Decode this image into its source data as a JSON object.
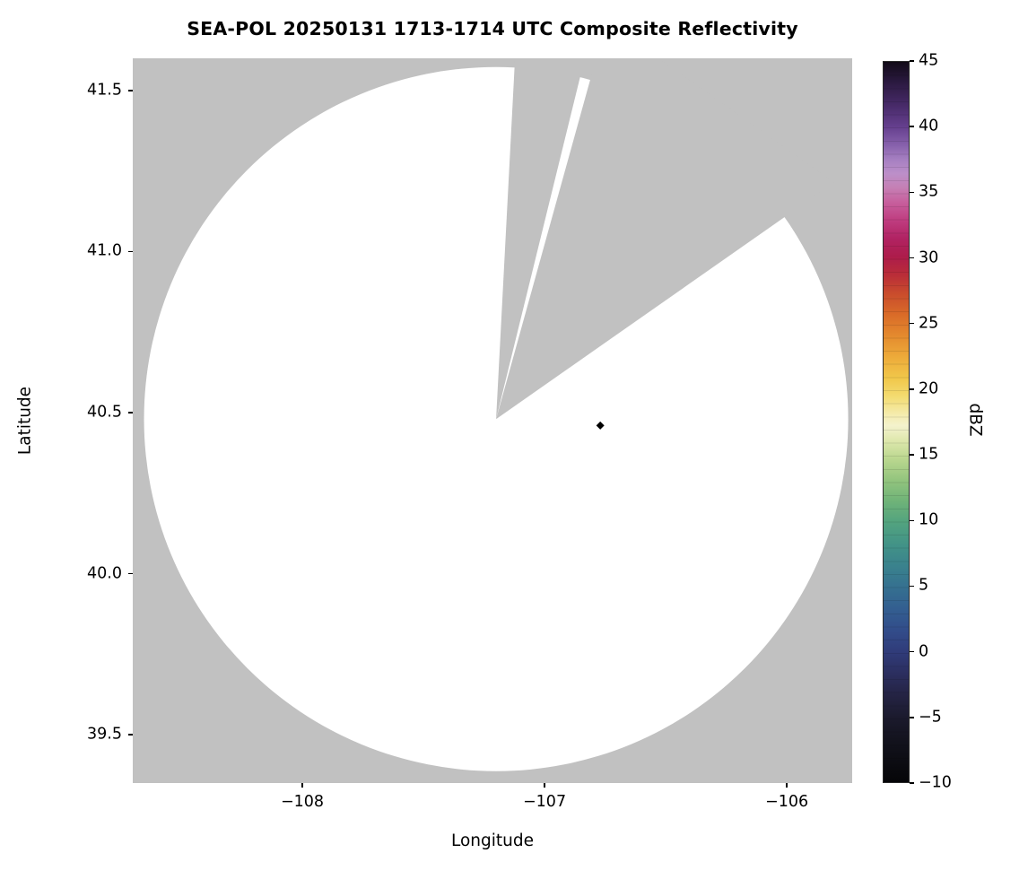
{
  "chart_data": {
    "type": "heatmap",
    "title": "SEA-POL 20250131 1713-1714 UTC Composite Reflectivity",
    "xlabel": "Longitude",
    "ylabel": "Latitude",
    "xlim": [
      -108.7,
      -105.73
    ],
    "ylim": [
      39.35,
      41.6
    ],
    "grid": false,
    "background_color": "#c1c1c1",
    "xticks": [
      {
        "value": -108,
        "label": "−108"
      },
      {
        "value": -107,
        "label": "−107"
      },
      {
        "value": -106,
        "label": "−106"
      }
    ],
    "yticks": [
      {
        "value": 41.5,
        "label": "41.5"
      },
      {
        "value": 41.0,
        "label": "41.0"
      },
      {
        "value": 40.5,
        "label": "40.5"
      },
      {
        "value": 40.0,
        "label": "40.0"
      },
      {
        "value": 39.5,
        "label": "39.5"
      }
    ],
    "coverage": {
      "description": "White filled circle = radar scan coverage area (no significant echo shown); gray = outside coverage and missing scan sectors converging at the radar site",
      "center_lon": -107.2,
      "center_lat": 40.48,
      "radius_lat_deg": 1.093,
      "fill_color": "#ffffff",
      "missing_sector_azimuths_deg": [
        [
          3,
          13.8
        ],
        [
          15.5,
          55
        ]
      ]
    },
    "marker": {
      "lon": -106.77,
      "lat": 40.46,
      "shape": "diamond",
      "color": "#000000",
      "description": "small dark reflectivity pixel / site marker east-southeast of radar center"
    },
    "colorbar": {
      "label": "dBZ",
      "vmin": -10,
      "vmax": 45,
      "orientation": "vertical",
      "position": "right",
      "ticks": [
        {
          "value": 45,
          "label": "45"
        },
        {
          "value": 40,
          "label": "40"
        },
        {
          "value": 35,
          "label": "35"
        },
        {
          "value": 30,
          "label": "30"
        },
        {
          "value": 25,
          "label": "25"
        },
        {
          "value": 20,
          "label": "20"
        },
        {
          "value": 15,
          "label": "15"
        },
        {
          "value": 10,
          "label": "10"
        },
        {
          "value": 5,
          "label": "5"
        },
        {
          "value": 0,
          "label": "0"
        },
        {
          "value": -5,
          "label": "−5"
        },
        {
          "value": -10,
          "label": "−10"
        }
      ],
      "stops_top_to_bottom": [
        {
          "p": 0,
          "c": "#120b18"
        },
        {
          "p": 3,
          "c": "#2c1a42"
        },
        {
          "p": 6,
          "c": "#472a68"
        },
        {
          "p": 9,
          "c": "#653f8e"
        },
        {
          "p": 11.5,
          "c": "#8660ab"
        },
        {
          "p": 13.5,
          "c": "#a57fc1"
        },
        {
          "p": 15.5,
          "c": "#bc8fc9"
        },
        {
          "p": 17.5,
          "c": "#c57fb4"
        },
        {
          "p": 19.5,
          "c": "#c75f9d"
        },
        {
          "p": 22,
          "c": "#bf3d80"
        },
        {
          "p": 24.5,
          "c": "#b12363"
        },
        {
          "p": 27,
          "c": "#ad1c4b"
        },
        {
          "p": 29.5,
          "c": "#b92c39"
        },
        {
          "p": 32,
          "c": "#c84a2d"
        },
        {
          "p": 35,
          "c": "#d96a28"
        },
        {
          "p": 38,
          "c": "#e48a2e"
        },
        {
          "p": 41,
          "c": "#edab3a"
        },
        {
          "p": 44,
          "c": "#f1c84b"
        },
        {
          "p": 46.5,
          "c": "#f3dc72"
        },
        {
          "p": 49,
          "c": "#f5ecaf"
        },
        {
          "p": 50.5,
          "c": "#f4f2cd"
        },
        {
          "p": 52.5,
          "c": "#dfe8ae"
        },
        {
          "p": 55,
          "c": "#bcd890"
        },
        {
          "p": 58,
          "c": "#94c57e"
        },
        {
          "p": 61,
          "c": "#6fb378"
        },
        {
          "p": 64,
          "c": "#52a37f"
        },
        {
          "p": 67,
          "c": "#429387"
        },
        {
          "p": 70,
          "c": "#3a828d"
        },
        {
          "p": 73,
          "c": "#357090"
        },
        {
          "p": 76,
          "c": "#335e90"
        },
        {
          "p": 79,
          "c": "#324c8a"
        },
        {
          "p": 82,
          "c": "#303b79"
        },
        {
          "p": 85,
          "c": "#2b2e5e"
        },
        {
          "p": 88,
          "c": "#242343"
        },
        {
          "p": 91,
          "c": "#1b1a2d"
        },
        {
          "p": 94.5,
          "c": "#12121c"
        },
        {
          "p": 100,
          "c": "#060608"
        }
      ]
    }
  }
}
